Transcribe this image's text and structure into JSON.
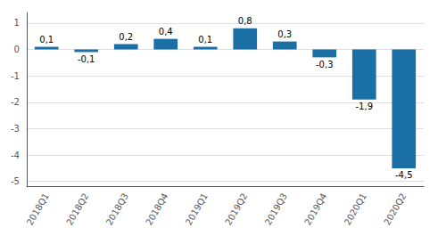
{
  "chart_data": {
    "type": "bar",
    "categories": [
      "2018Q1",
      "2018Q2",
      "2018Q3",
      "2018Q4",
      "2019Q1",
      "2019Q2",
      "2019Q3",
      "2019Q4",
      "2020Q1",
      "2020Q2"
    ],
    "values": [
      0.1,
      -0.1,
      0.2,
      0.4,
      0.1,
      0.8,
      0.3,
      -0.3,
      -1.9,
      -4.5
    ],
    "value_labels": [
      "0,1",
      "-0,1",
      "0,2",
      "0,4",
      "0,1",
      "0,8",
      "0,3",
      "-0,3",
      "-1,9",
      "-4,5"
    ],
    "data_labels": true,
    "color": "#1a6fa5",
    "ylim": [
      -5.2,
      1.4
    ],
    "yticks": [
      -5,
      -4,
      -3,
      -2,
      -1,
      0,
      1
    ],
    "grid": true
  }
}
